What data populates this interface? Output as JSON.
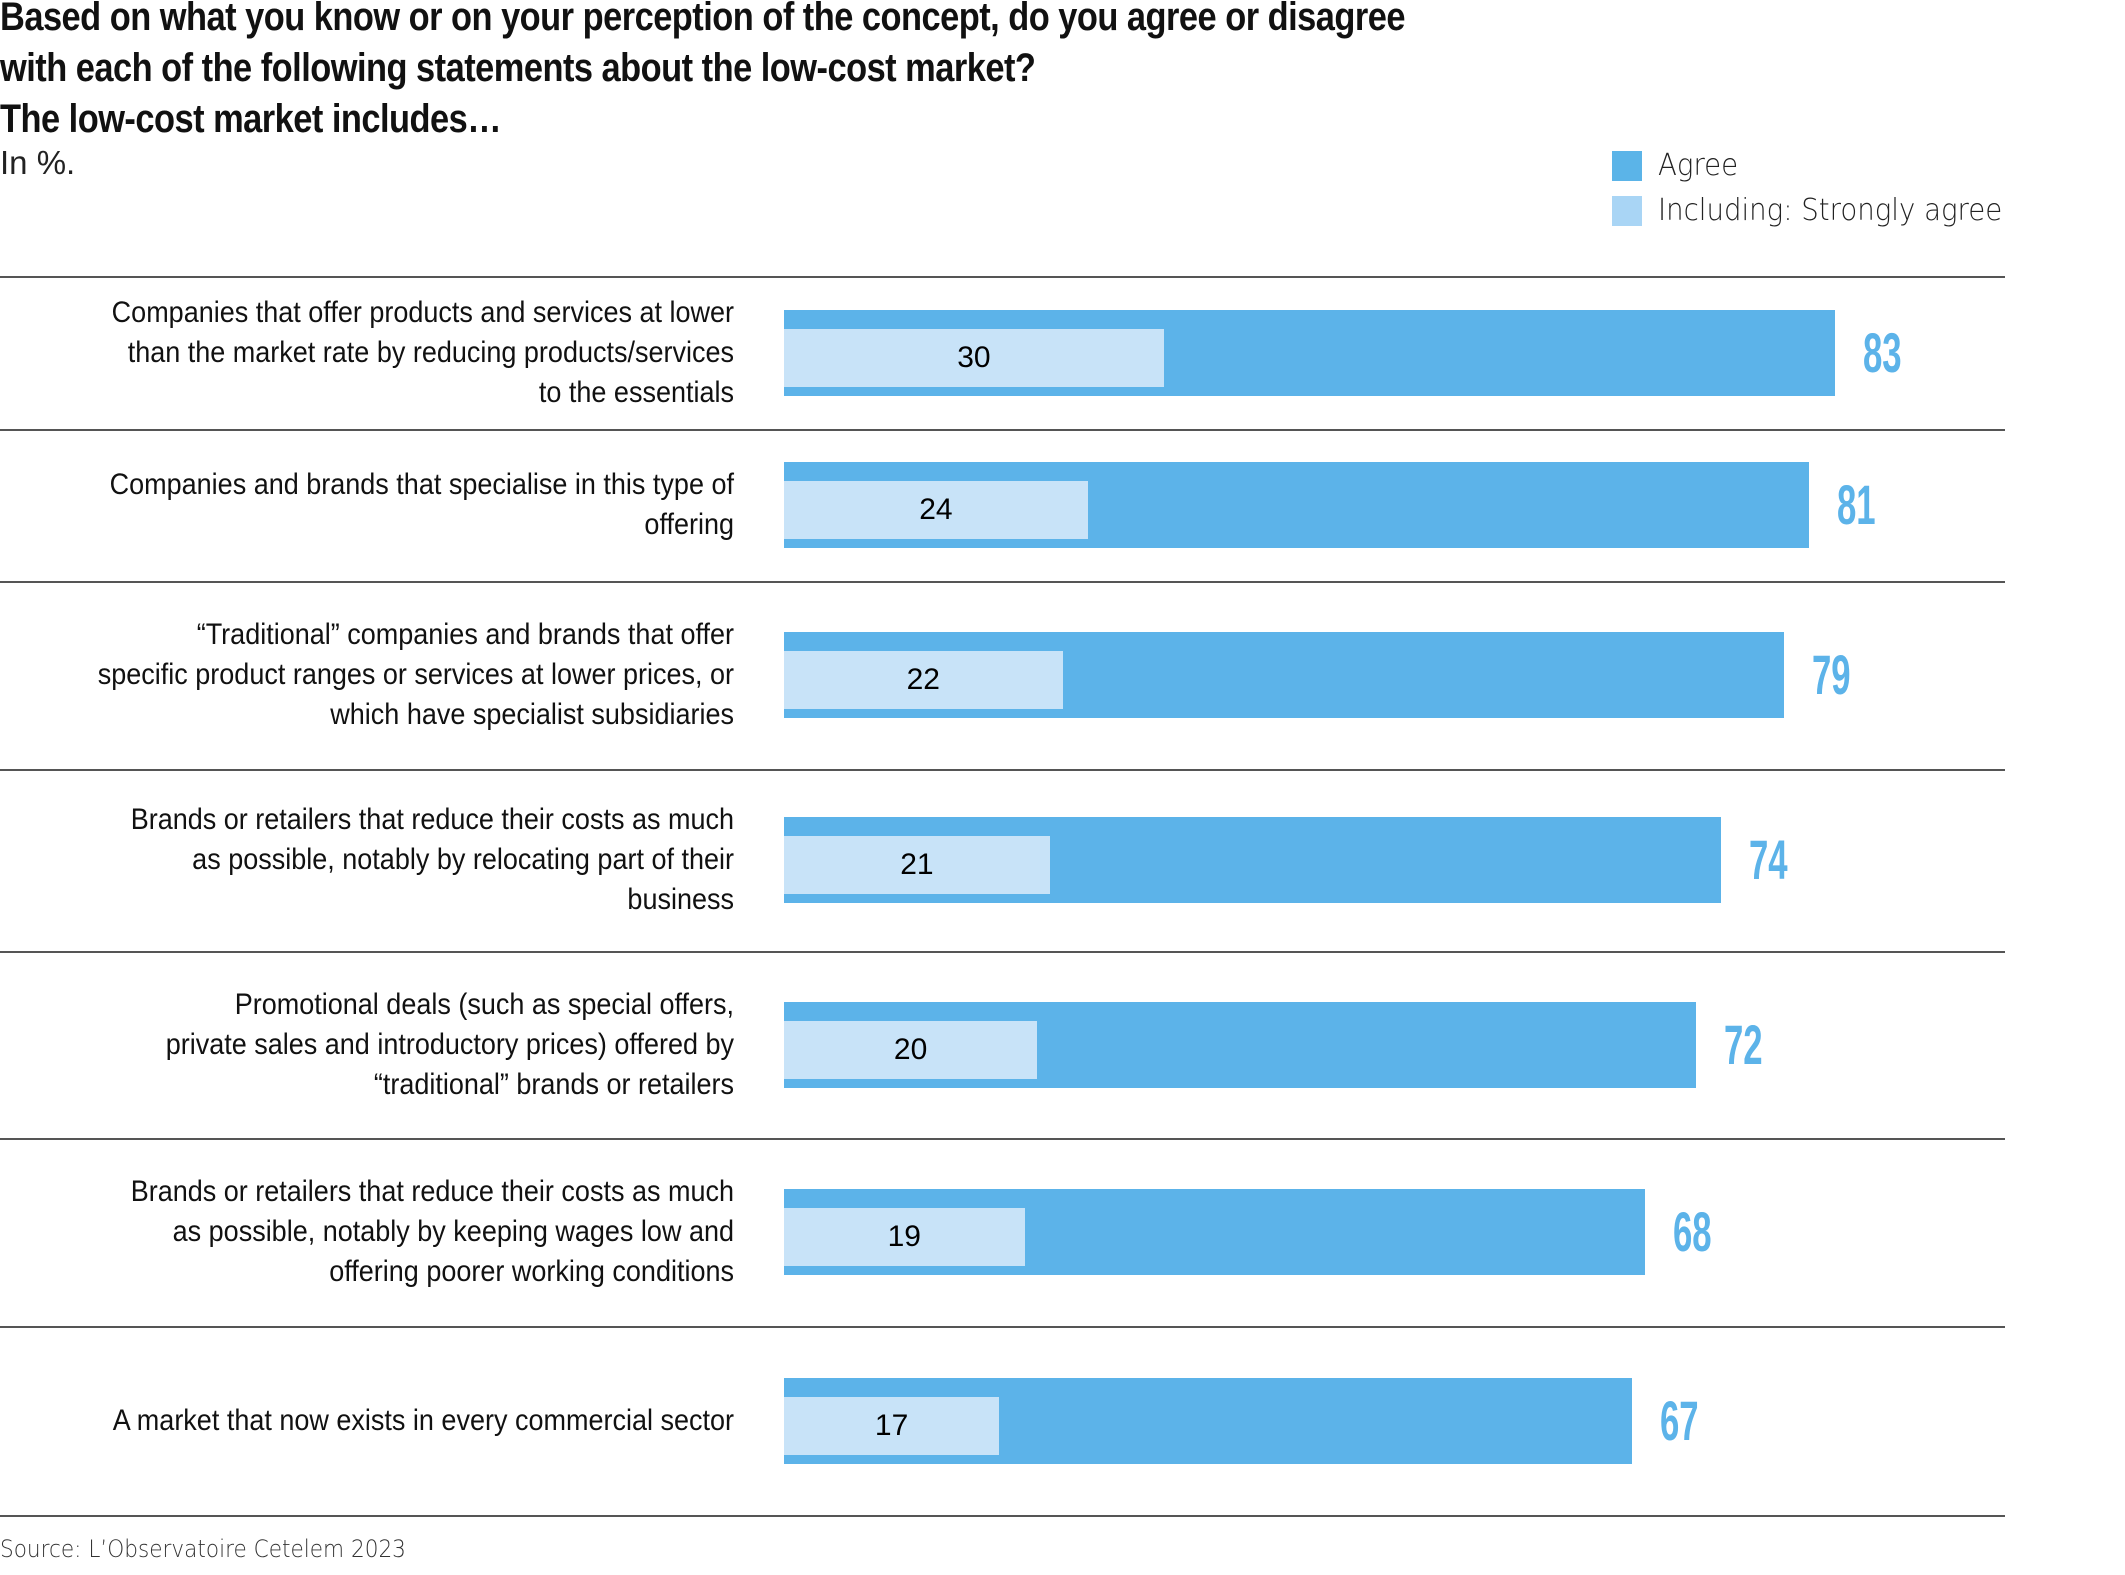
{
  "header": {
    "title_lines": [
      "Based on what you know or on your perception of the concept, do you agree or disagree",
      "with each of the following statements about the low-cost market?",
      "The low-cost market includes…"
    ],
    "subtitle": "In %."
  },
  "legend": {
    "items": [
      {
        "label": "Agree",
        "color": "#5bb4e8"
      },
      {
        "label": "Including: Strongly agree",
        "color": "#a9d5f5"
      }
    ]
  },
  "source": "Source: L’Observatoire Cetelem 2023",
  "colors": {
    "agree": "#5cb3e9",
    "strongly_agree": "#c8e3f8",
    "total_label": "#5cb3e9",
    "separator": "#555555"
  },
  "chart_data": {
    "type": "bar",
    "orientation": "horizontal",
    "title": "Based on what you know or on your perception of the concept, do you agree or disagree with each of the following statements about the low-cost market? The low-cost market includes…",
    "subtitle": "In %.",
    "xlabel": "",
    "ylabel": "",
    "xlim": [
      0,
      100
    ],
    "grid": false,
    "legend_position": "top-right",
    "categories": [
      [
        "Companies that offer products and services at lower",
        "than the market rate by reducing products/services",
        "to the essentials"
      ],
      [
        "Companies and brands that specialise in this type of",
        "offering"
      ],
      [
        "“Traditional” companies and brands that offer",
        "specific product ranges or services at lower prices, or",
        "which have specialist subsidiaries"
      ],
      [
        "Brands or retailers that reduce their costs as much",
        "as possible, notably by relocating part of their",
        "business"
      ],
      [
        "Promotional deals (such as special offers,",
        "private sales and introductory prices) offered by",
        "“traditional” brands or retailers"
      ],
      [
        "Brands or retailers that reduce their costs as much",
        "as possible, notably by keeping wages low and",
        "offering poorer working conditions"
      ],
      [
        "A market that now exists in every commercial sector"
      ]
    ],
    "series": [
      {
        "name": "Agree",
        "values": [
          83,
          81,
          79,
          74,
          72,
          68,
          67
        ]
      },
      {
        "name": "Including: Strongly agree",
        "values": [
          30,
          24,
          22,
          21,
          20,
          19,
          17
        ]
      }
    ],
    "source": "Source: L’Observatoire Cetelem 2023"
  }
}
